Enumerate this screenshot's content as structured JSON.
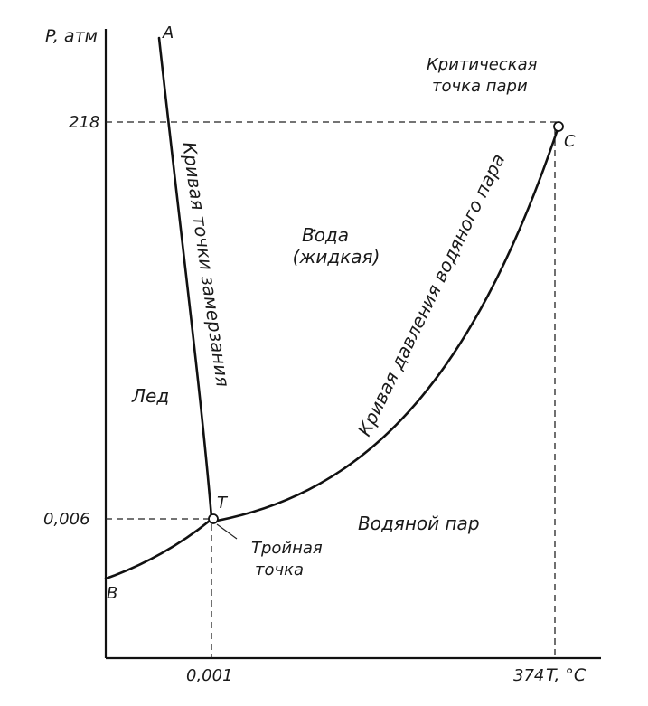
{
  "axes": {
    "y_label": "P, атм",
    "x_label": "T, °C",
    "y_ticks": [
      "218",
      "0,006"
    ],
    "x_ticks": [
      "0,001",
      "374"
    ]
  },
  "points": {
    "A": "A",
    "B": "B",
    "C": "C",
    "T": "T"
  },
  "regions": {
    "ice": "Лед",
    "water_line1": "Вода",
    "water_line2": "(жидкая)",
    "vapor": "Водяной пар"
  },
  "curves": {
    "freezing": "Кривая точки замерзания",
    "vapor_pressure": "Кривая давления водяного пара"
  },
  "annotations": {
    "critical_line1": "Критическая",
    "critical_line2": "точка пари",
    "triple_line1": "Тройная",
    "triple_line2": "точка"
  }
}
